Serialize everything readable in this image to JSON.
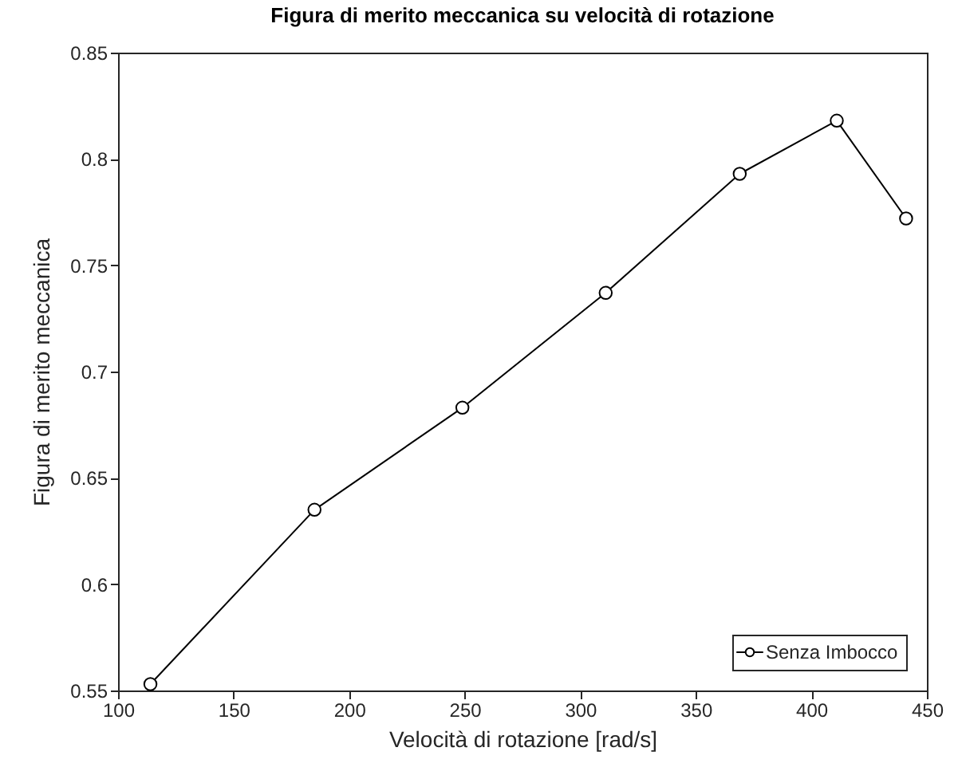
{
  "chart_data": {
    "type": "line",
    "title": "Figura di merito meccanica su velocità di rotazione",
    "xlabel": "Velocità di rotazione [rad/s]",
    "ylabel": "Figura di merito meccanica",
    "x": [
      114,
      185,
      249,
      311,
      369,
      411,
      441
    ],
    "series": [
      {
        "name": "Senza Imbocco",
        "color": "#000000",
        "values": [
          0.553,
          0.635,
          0.683,
          0.737,
          0.793,
          0.818,
          0.772
        ]
      }
    ],
    "xlim": [
      100,
      450
    ],
    "ylim": [
      0.55,
      0.85
    ],
    "xticks": [
      100,
      150,
      200,
      250,
      300,
      350,
      400,
      450
    ],
    "yticks": [
      0.55,
      0.6,
      0.65,
      0.7,
      0.75,
      0.8,
      0.85
    ],
    "grid": false,
    "legend": "bottom right",
    "marker": "circle",
    "line_style": "solid"
  }
}
